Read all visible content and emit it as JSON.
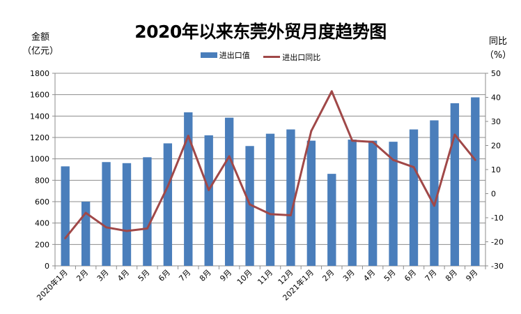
{
  "chart_data": {
    "type": "bar+line",
    "title": "2020年以来东莞外贸月度趋势图",
    "ylabel": [
      "金额",
      "（亿元）"
    ],
    "y2label": [
      "同比",
      "（%）"
    ],
    "categories": [
      "2020年1月",
      "2月",
      "3月",
      "4月",
      "5月",
      "6月",
      "7月",
      "8月",
      "9月",
      "10月",
      "11月",
      "12月",
      "2021年1月",
      "2月",
      "3月",
      "4月",
      "5月",
      "6月",
      "7月",
      "8月",
      "9月"
    ],
    "series": [
      {
        "name": "进出口值",
        "type": "bar",
        "axis": "left",
        "color": "#4a7ebb",
        "values": [
          930,
          600,
          970,
          960,
          1015,
          1145,
          1435,
          1220,
          1385,
          1120,
          1235,
          1275,
          1170,
          860,
          1180,
          1170,
          1160,
          1275,
          1360,
          1520,
          1575
        ]
      },
      {
        "name": "进出口同比",
        "type": "line",
        "axis": "right",
        "color": "#a04848",
        "values": [
          -18.5,
          -8,
          -14,
          -15.5,
          -14.5,
          3,
          24,
          1.5,
          15.5,
          -4.5,
          -8.5,
          -9,
          26,
          42.5,
          22,
          21.5,
          14,
          11,
          -5,
          24.5,
          14
        ]
      }
    ],
    "ylim": [
      0,
      1800
    ],
    "yticks": [
      0,
      200,
      400,
      600,
      800,
      1000,
      1200,
      1400,
      1600,
      1800
    ],
    "y2lim": [
      -30,
      50
    ],
    "y2ticks": [
      -30,
      -20,
      -10,
      0,
      10,
      20,
      30,
      40,
      50
    ],
    "grid": true,
    "legend": "top-center"
  }
}
